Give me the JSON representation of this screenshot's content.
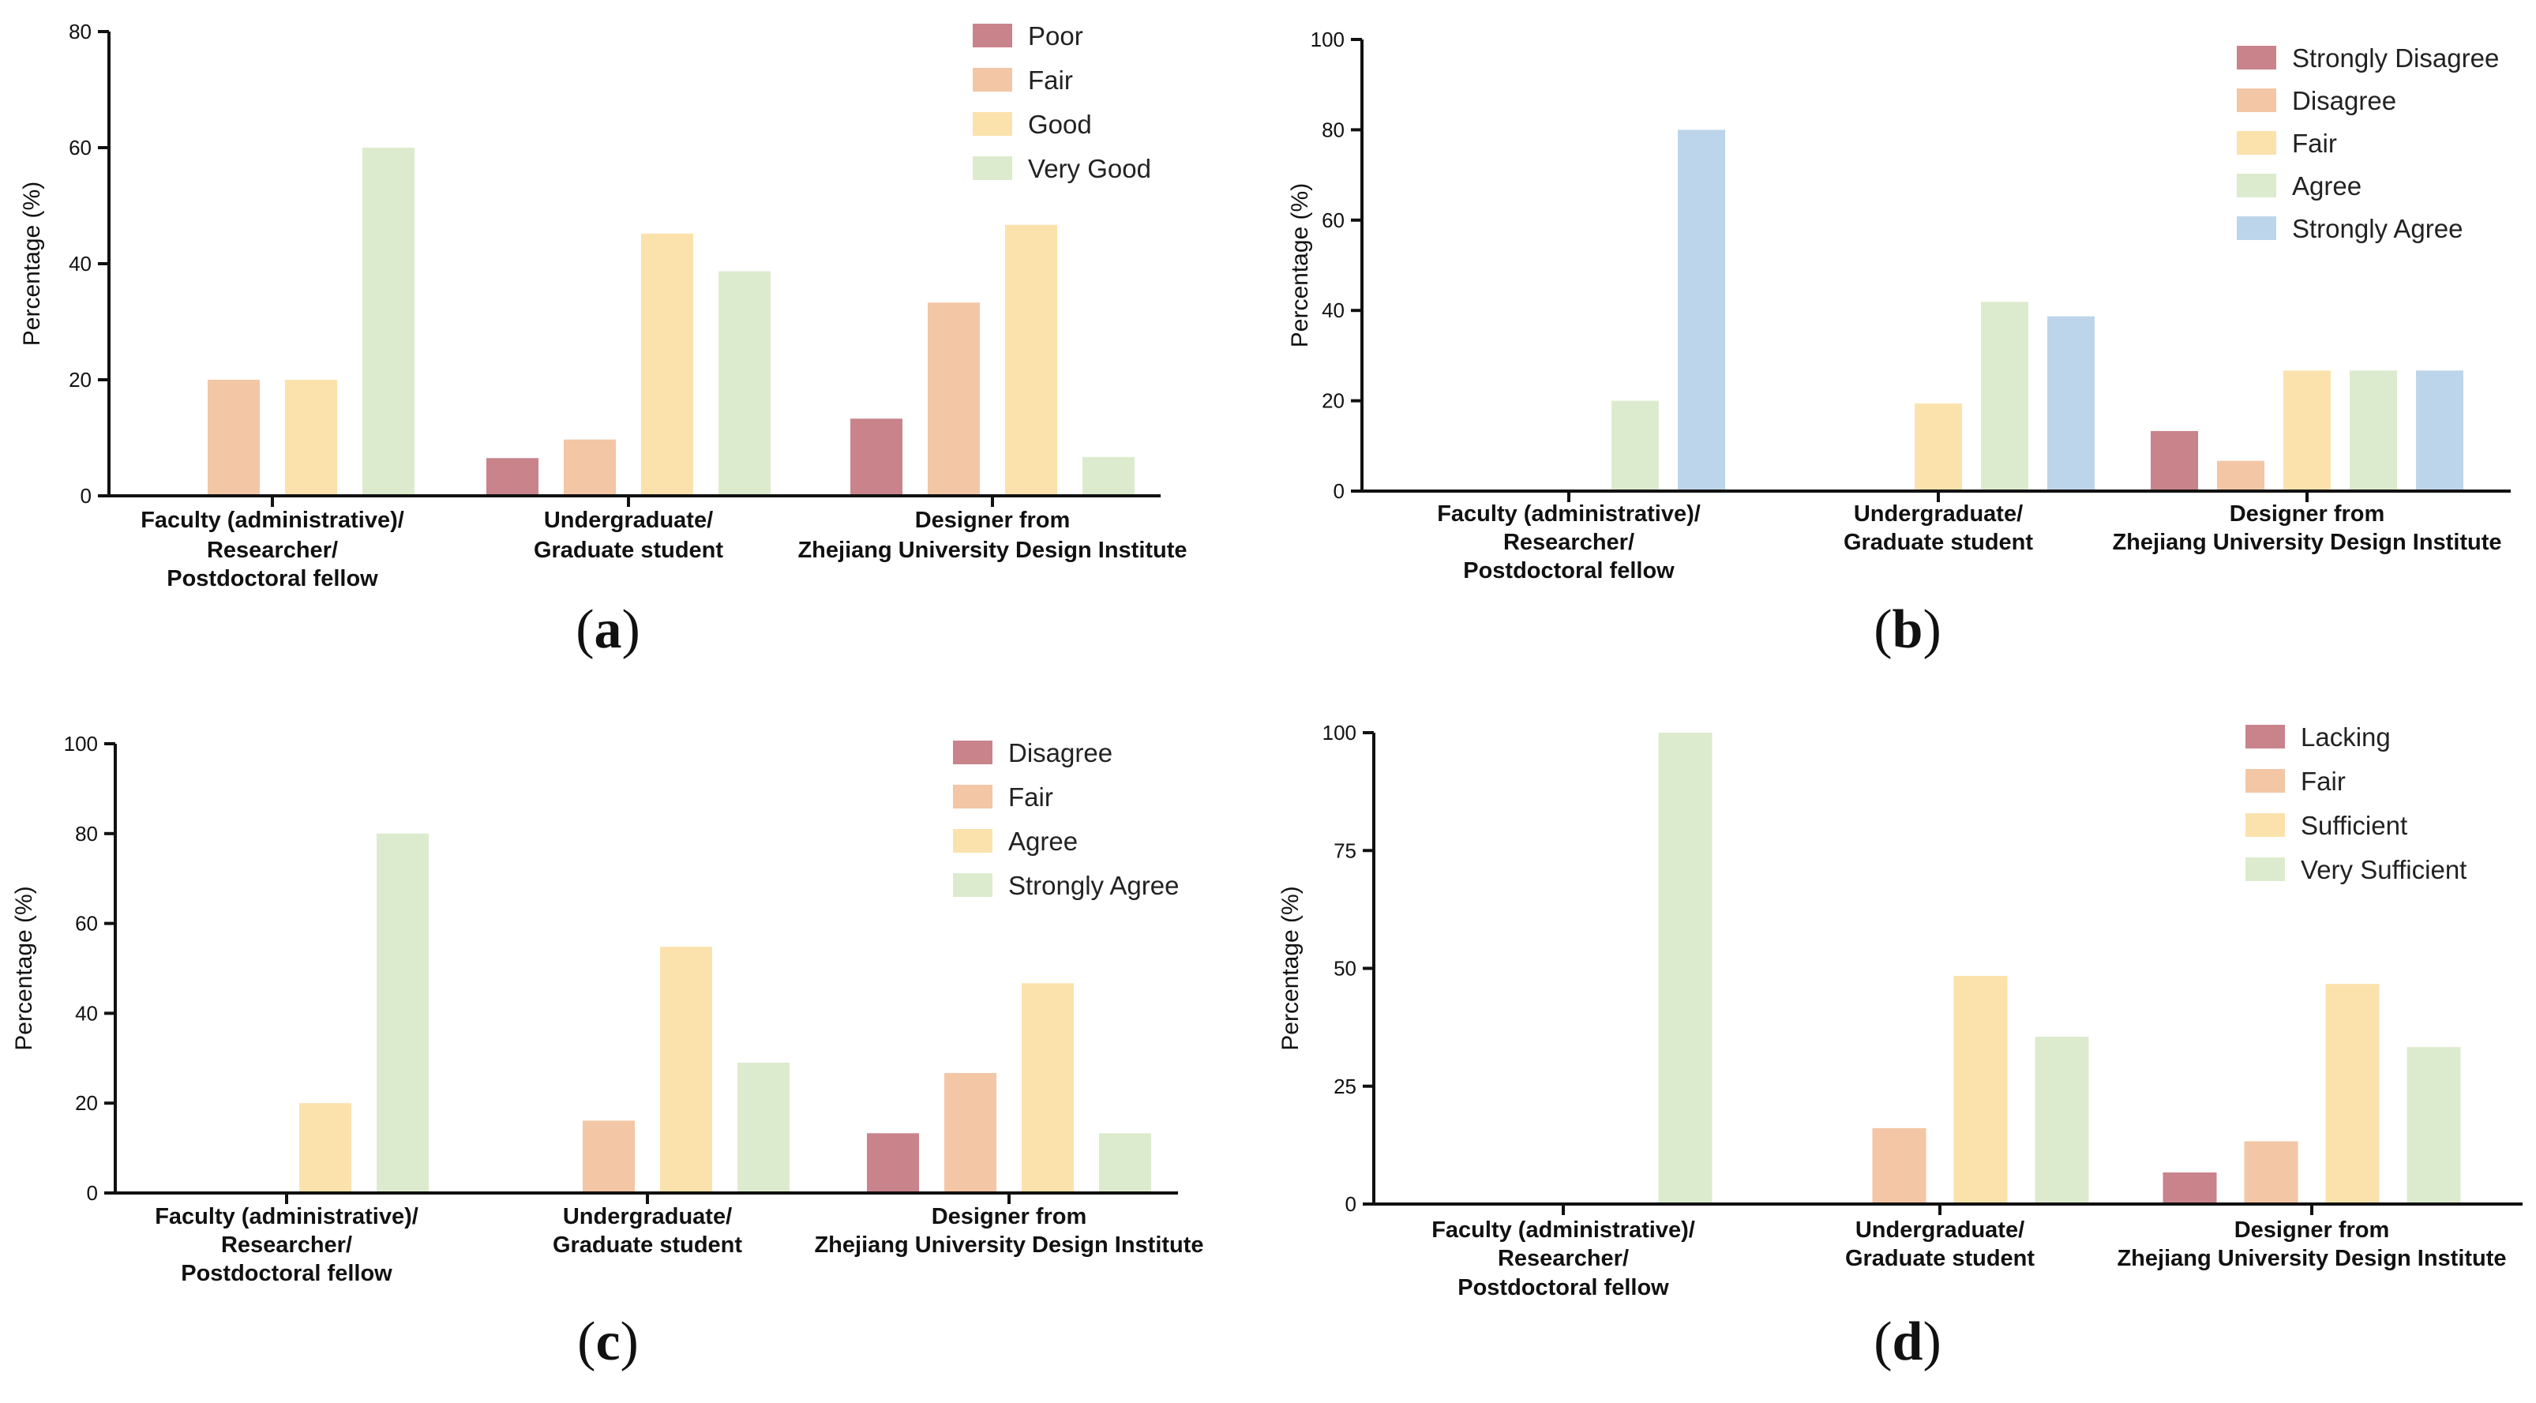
{
  "chart_data": [
    {
      "panel": "(a)",
      "type": "bar",
      "ylabel": "Percentage (%)",
      "ylim": [
        0,
        80
      ],
      "yticks": [
        "0",
        "20",
        "40",
        "60",
        "80"
      ],
      "categories": [
        [
          "Faculty (administrative)/",
          "Researcher/",
          "Postdoctoral fellow"
        ],
        [
          "Undergraduate/",
          "Graduate student"
        ],
        [
          "Designer from",
          "Zhejiang University Design Institute"
        ]
      ],
      "legend_position": "top-right",
      "series": [
        {
          "name": "Poor",
          "color": "#c9838b",
          "values": [
            0,
            6.5,
            13.3
          ]
        },
        {
          "name": "Fair",
          "color": "#f3c6a5",
          "values": [
            20,
            9.7,
            33.3
          ]
        },
        {
          "name": "Good",
          "color": "#fbe2ad",
          "values": [
            20,
            45.2,
            46.7
          ]
        },
        {
          "name": "Very Good",
          "color": "#dcebce",
          "values": [
            60,
            38.7,
            6.7
          ]
        }
      ]
    },
    {
      "panel": "(b)",
      "type": "bar",
      "ylabel": "Percentage (%)",
      "ylim": [
        0,
        100
      ],
      "yticks": [
        "0",
        "20",
        "40",
        "60",
        "80",
        "100"
      ],
      "categories": [
        [
          "Faculty (administrative)/",
          "Researcher/",
          "Postdoctoral fellow"
        ],
        [
          "Undergraduate/",
          "Graduate student"
        ],
        [
          "Designer from",
          "Zhejiang University Design Institute"
        ]
      ],
      "legend_position": "top-right",
      "series": [
        {
          "name": "Strongly Disagree",
          "color": "#c9838b",
          "values": [
            0,
            0,
            13.3
          ]
        },
        {
          "name": "Disagree",
          "color": "#f3c6a5",
          "values": [
            0,
            0,
            6.7
          ]
        },
        {
          "name": "Fair",
          "color": "#fbe2ad",
          "values": [
            0,
            19.4,
            26.7
          ]
        },
        {
          "name": "Agree",
          "color": "#dcebce",
          "values": [
            20,
            41.9,
            26.7
          ]
        },
        {
          "name": "Strongly Agree",
          "color": "#bdd5ea",
          "values": [
            80,
            38.7,
            26.7
          ]
        }
      ]
    },
    {
      "panel": "(c)",
      "type": "bar",
      "ylabel": "Percentage (%)",
      "ylim": [
        0,
        100
      ],
      "yticks": [
        "0",
        "20",
        "40",
        "60",
        "80",
        "100"
      ],
      "categories": [
        [
          "Faculty (administrative)/",
          "Researcher/",
          "Postdoctoral fellow"
        ],
        [
          "Undergraduate/",
          "Graduate student"
        ],
        [
          "Designer from",
          "Zhejiang University Design Institute"
        ]
      ],
      "legend_position": "top-right",
      "series": [
        {
          "name": "Disagree",
          "color": "#c9838b",
          "values": [
            0,
            0,
            13.3
          ]
        },
        {
          "name": "Fair",
          "color": "#f3c6a5",
          "values": [
            0,
            16.1,
            26.7
          ]
        },
        {
          "name": "Agree",
          "color": "#fbe2ad",
          "values": [
            20,
            54.8,
            46.7
          ]
        },
        {
          "name": "Strongly Agree",
          "color": "#dcebce",
          "values": [
            80,
            29.0,
            13.3
          ]
        }
      ]
    },
    {
      "panel": "(d)",
      "type": "bar",
      "ylabel": "Percentage (%)",
      "ylim": [
        0,
        100
      ],
      "yticks": [
        "0",
        "25",
        "50",
        "75",
        "100"
      ],
      "categories": [
        [
          "Faculty (administrative)/",
          "Researcher/",
          "Postdoctoral fellow"
        ],
        [
          "Undergraduate/",
          "Graduate student"
        ],
        [
          "Designer from",
          "Zhejiang University Design Institute"
        ]
      ],
      "legend_position": "top-right",
      "series": [
        {
          "name": "Lacking",
          "color": "#c9838b",
          "values": [
            0,
            0,
            6.7
          ]
        },
        {
          "name": "Fair",
          "color": "#f3c6a5",
          "values": [
            0,
            16.1,
            13.3
          ]
        },
        {
          "name": "Sufficient",
          "color": "#fbe2ad",
          "values": [
            0,
            48.4,
            46.7
          ]
        },
        {
          "name": "Very Sufficient",
          "color": "#dcebce",
          "values": [
            100,
            35.5,
            33.3
          ]
        }
      ]
    }
  ]
}
